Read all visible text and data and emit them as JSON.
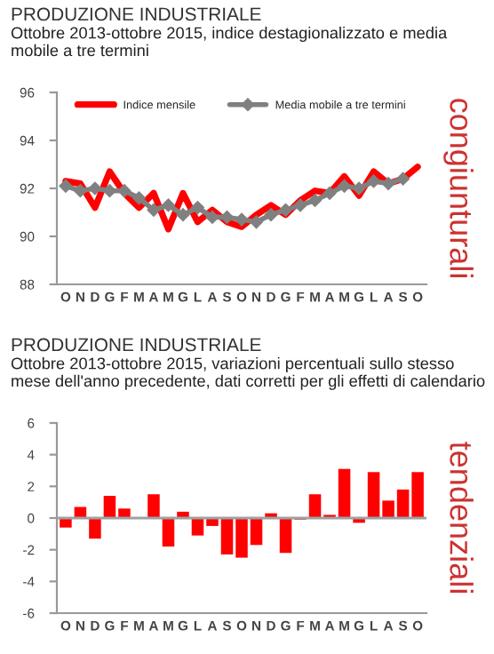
{
  "chart_data": [
    {
      "type": "line",
      "title": "PRODUZIONE INDUSTRIALE",
      "subtitle": "Ottobre 2013-ottobre 2015, indice destagionalizzato e media mobile a tre termini",
      "categories": [
        "O",
        "N",
        "D",
        "G",
        "F",
        "M",
        "A",
        "M",
        "G",
        "L",
        "A",
        "S",
        "O",
        "N",
        "D",
        "G",
        "F",
        "M",
        "A",
        "M",
        "G",
        "L",
        "A",
        "S",
        "O"
      ],
      "series": [
        {
          "name": "Indice mensile",
          "color": "#ff0000",
          "marker": "none",
          "values": [
            92.3,
            92.2,
            91.2,
            92.7,
            91.8,
            91.2,
            91.8,
            90.3,
            91.8,
            90.6,
            91.1,
            90.6,
            90.4,
            90.9,
            91.3,
            90.9,
            91.5,
            91.9,
            91.8,
            92.5,
            91.7,
            92.7,
            92.2,
            92.4,
            92.9
          ]
        },
        {
          "name": "Media mobile a tre termini",
          "color": "#808080",
          "marker": "diamond",
          "values": [
            92.1,
            91.9,
            92.0,
            91.9,
            91.9,
            91.6,
            91.1,
            91.3,
            90.9,
            91.2,
            90.8,
            90.8,
            90.7,
            90.6,
            90.9,
            91.1,
            91.3,
            91.5,
            91.8,
            92.1,
            92.0,
            92.3,
            92.2,
            92.4,
            null
          ]
        }
      ],
      "ylim": [
        88,
        96
      ],
      "yticks": [
        88,
        90,
        92,
        94,
        96
      ],
      "grid": false,
      "legend": "top",
      "annotations": [
        "congiunturali"
      ]
    },
    {
      "type": "bar",
      "title": "PRODUZIONE INDUSTRIALE",
      "subtitle": "Ottobre 2013-ottobre 2015, variazioni percentuali sullo stesso mese dell'anno precedente, dati corretti per gli effetti di calendario",
      "categories": [
        "O",
        "N",
        "D",
        "G",
        "F",
        "M",
        "A",
        "M",
        "G",
        "L",
        "A",
        "S",
        "O",
        "N",
        "D",
        "G",
        "F",
        "M",
        "A",
        "M",
        "G",
        "L",
        "A",
        "S",
        "O"
      ],
      "values": [
        -0.6,
        0.7,
        -1.3,
        1.4,
        0.6,
        null,
        1.5,
        -1.8,
        0.4,
        -1.1,
        -0.5,
        -2.3,
        -2.5,
        -1.7,
        0.3,
        -2.2,
        -0.1,
        1.5,
        0.2,
        3.1,
        -0.3,
        2.9,
        1.1,
        1.8,
        2.9
      ],
      "color": "#ff0000",
      "ylim": [
        -6,
        6
      ],
      "yticks": [
        -6,
        -4,
        -2,
        0,
        2,
        4,
        6
      ],
      "grid": false,
      "legend": false,
      "ref_lines": [
        {
          "axis": "y",
          "value": 0,
          "color": "#a0a0a0"
        }
      ],
      "annotations": [
        "tendenziali"
      ]
    }
  ]
}
